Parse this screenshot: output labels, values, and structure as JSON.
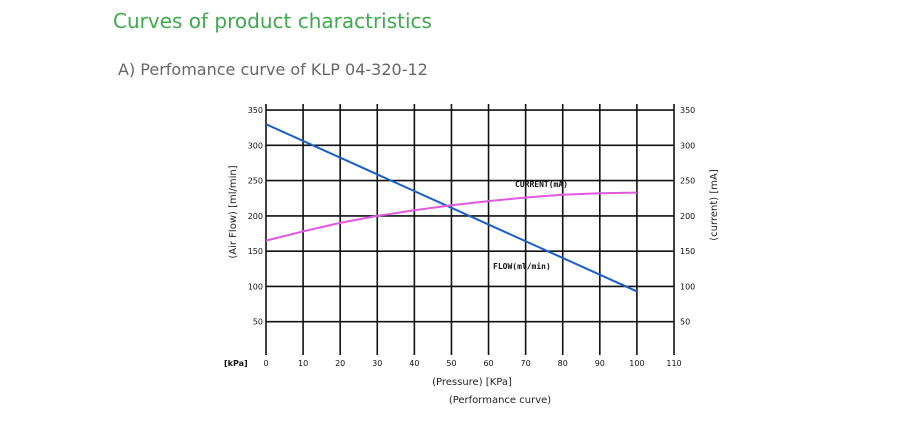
{
  "heading": "Curves of product charactristics",
  "subheading": "A) Perfomance curve of KLP 04-320-12",
  "chart_data": {
    "type": "line",
    "x_unit_label": "[kPa]",
    "x_ticks": [
      0,
      10,
      20,
      30,
      40,
      50,
      60,
      70,
      80,
      90,
      100,
      110
    ],
    "y_ticks": [
      50,
      100,
      150,
      200,
      250,
      300,
      350
    ],
    "y_right_ticks": [
      50,
      100,
      150,
      200,
      250,
      300,
      350
    ],
    "xlim": [
      0,
      110
    ],
    "ylim": [
      0,
      360
    ],
    "xlabel": "(Pressure) [KPa]",
    "ylabel_left": "(Air Flow) [ml/min]",
    "ylabel_right": "(current) [mA]",
    "caption": "(Performance curve)",
    "grid": true,
    "series": [
      {
        "name": "FLOW(ml/min)",
        "color": "#1a5fc8",
        "x": [
          0,
          100
        ],
        "y": [
          330,
          93
        ]
      },
      {
        "name": "CURRENT(mA)",
        "color": "#e05ae0",
        "x": [
          0,
          10,
          20,
          30,
          40,
          50,
          60,
          70,
          80,
          90,
          100
        ],
        "y": [
          165,
          178,
          190,
          200,
          208,
          215,
          221,
          226,
          230,
          232,
          233
        ]
      }
    ]
  }
}
